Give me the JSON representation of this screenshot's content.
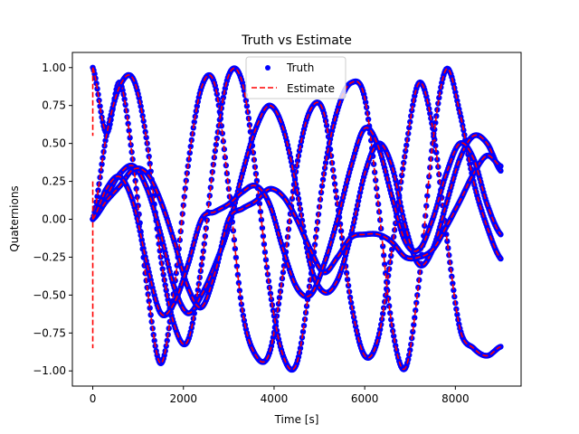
{
  "chart_data": {
    "type": "line",
    "title": "Truth vs Estimate",
    "xlabel": "Time [s]",
    "ylabel": "Quaternions",
    "xlim": [
      -450,
      9450
    ],
    "ylim": [
      -1.1,
      1.1
    ],
    "xticks": [
      0,
      2000,
      4000,
      6000,
      8000
    ],
    "xtick_labels": [
      "0",
      "2000",
      "4000",
      "6000",
      "8000"
    ],
    "yticks": [
      -1.0,
      -0.75,
      -0.5,
      -0.25,
      0.0,
      0.25,
      0.5,
      0.75,
      1.0
    ],
    "ytick_labels": [
      "−1.00",
      "−0.75",
      "−0.50",
      "−0.25",
      "0.00",
      "0.25",
      "0.50",
      "0.75",
      "1.00"
    ],
    "grid": false,
    "legend_position": "top-center",
    "legend": [
      {
        "label": "Truth",
        "style": "dots",
        "color": "#0000ff"
      },
      {
        "label": "Estimate",
        "style": "dashed",
        "color": "#ff0000"
      }
    ],
    "x_sampled": [
      0,
      300,
      600,
      900,
      1200,
      1500,
      1800,
      2100,
      2400,
      2700,
      3000,
      3300,
      3600,
      3900,
      4200,
      4500,
      4800,
      5100,
      5400,
      5700,
      6000,
      6300,
      6600,
      6900,
      7200,
      7500,
      7800,
      8100,
      8400,
      8700,
      9000
    ],
    "series": [
      {
        "values": [
          1.0,
          0.57,
          0.9,
          0.35,
          -0.45,
          -0.95,
          -0.45,
          0.35,
          0.87,
          0.88,
          0.2,
          -0.6,
          -0.9,
          -0.88,
          -0.35,
          0.35,
          0.72,
          0.7,
          0.1,
          -0.55,
          -0.9,
          -0.78,
          -0.2,
          0.45,
          0.9,
          0.6,
          -0.1,
          -0.72,
          -0.85,
          -0.9,
          -0.84
        ]
      },
      {
        "values": [
          0.0,
          0.55,
          0.88,
          0.92,
          0.5,
          -0.25,
          -0.7,
          -0.8,
          -0.3,
          0.45,
          0.95,
          0.9,
          0.3,
          -0.45,
          -0.9,
          -0.95,
          -0.4,
          0.3,
          0.72,
          0.9,
          0.8,
          0.1,
          -0.7,
          -0.98,
          -0.4,
          0.5,
          0.99,
          0.7,
          0.25,
          -0.05,
          -0.26
        ]
      },
      {
        "values": [
          0.0,
          0.15,
          0.3,
          0.35,
          0.2,
          -0.1,
          -0.45,
          -0.62,
          -0.5,
          -0.3,
          -0.05,
          0.3,
          0.6,
          0.75,
          0.6,
          0.2,
          -0.3,
          -0.48,
          -0.4,
          -0.1,
          0.3,
          0.5,
          0.35,
          -0.05,
          -0.3,
          -0.2,
          0.1,
          0.4,
          0.55,
          0.5,
          0.32
        ]
      },
      {
        "values": [
          0.0,
          0.12,
          0.22,
          0.33,
          0.3,
          0.12,
          -0.15,
          -0.45,
          -0.58,
          -0.35,
          0.0,
          0.07,
          0.12,
          0.2,
          0.15,
          0.0,
          -0.2,
          -0.35,
          -0.25,
          -0.12,
          -0.1,
          -0.1,
          -0.15,
          -0.25,
          -0.25,
          -0.2,
          -0.05,
          0.12,
          0.3,
          0.42,
          0.35
        ]
      },
      {
        "values": [
          0.0,
          0.2,
          0.28,
          0.1,
          -0.3,
          -0.62,
          -0.55,
          -0.3,
          0.0,
          0.05,
          0.1,
          0.18,
          0.22,
          0.1,
          -0.2,
          -0.45,
          -0.5,
          -0.3,
          0.0,
          0.35,
          0.6,
          0.48,
          0.15,
          -0.15,
          -0.2,
          0.0,
          0.3,
          0.5,
          0.4,
          0.1,
          -0.1
        ]
      }
    ]
  }
}
